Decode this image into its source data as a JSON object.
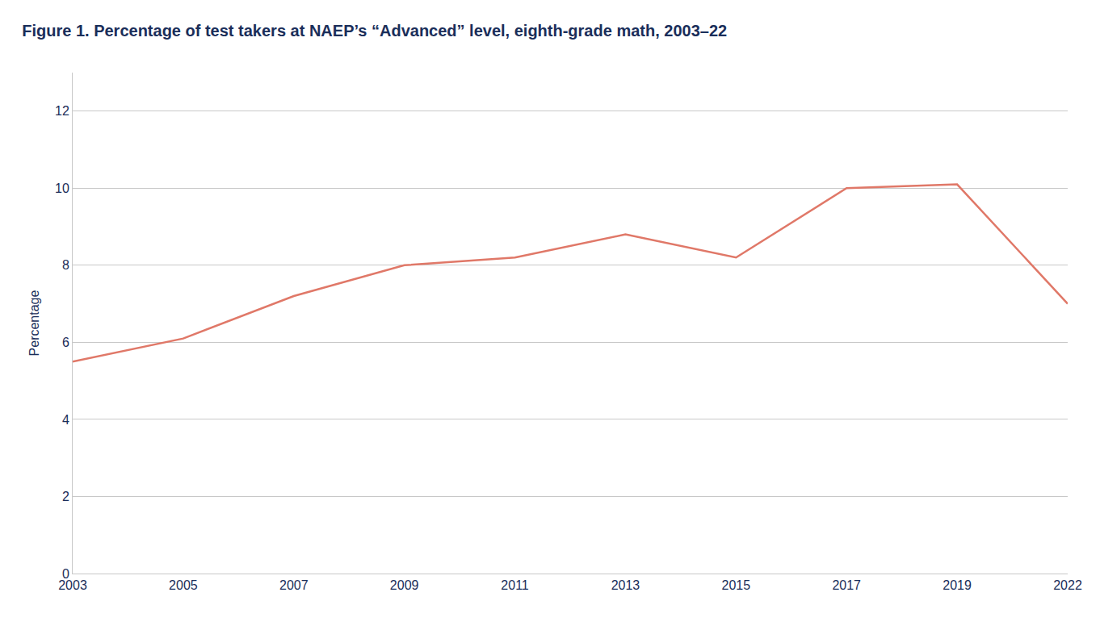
{
  "chart_data": {
    "type": "line",
    "title": "Figure 1. Percentage of test takers at NAEP’s “Advanced” level, eighth-grade math, 2003–22",
    "categories": [
      "2003",
      "2005",
      "2007",
      "2009",
      "2011",
      "2013",
      "2015",
      "2017",
      "2019",
      "2022"
    ],
    "values": [
      5.5,
      6.1,
      7.2,
      8.0,
      8.2,
      8.8,
      8.2,
      10.0,
      10.1,
      7.0
    ],
    "ylabel": "Percentage",
    "color": "#e07868",
    "ylim": [
      0,
      13
    ],
    "yticks": [
      0,
      2,
      4,
      6,
      8,
      10,
      12
    ],
    "grid": true
  }
}
